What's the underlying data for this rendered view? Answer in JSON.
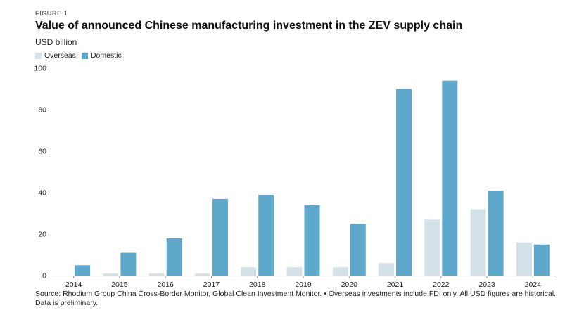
{
  "figure_label": "FIGURE 1",
  "source_note": "Source: Rhodium Group China Cross-Border Monitor, Global Clean Investment Monitor. • Overseas investments include FDI only. All USD figures are historical. Data is preliminary.",
  "colors": {
    "overseas": "#d5e1e8",
    "domestic": "#5ea8cc",
    "axis": "#888888"
  },
  "chart_data": {
    "type": "bar",
    "title": "Value of announced Chinese manufacturing investment in the ZEV supply chain",
    "ylabel": "USD billion",
    "xlabel": "",
    "categories": [
      "2014",
      "2015",
      "2016",
      "2017",
      "2018",
      "2019",
      "2020",
      "2021",
      "2022",
      "2023",
      "2024"
    ],
    "series": [
      {
        "name": "Overseas",
        "values": [
          0,
          1,
          1,
          1,
          4,
          4,
          4,
          6,
          27,
          32,
          16
        ]
      },
      {
        "name": "Domestic",
        "values": [
          5,
          11,
          18,
          37,
          39,
          34,
          25,
          90,
          94,
          41,
          15
        ]
      }
    ],
    "yticks": [
      "0",
      "20",
      "40",
      "60",
      "80",
      "100"
    ],
    "ylim": [
      0,
      100
    ],
    "grid": false,
    "legend_position": "top-left"
  }
}
